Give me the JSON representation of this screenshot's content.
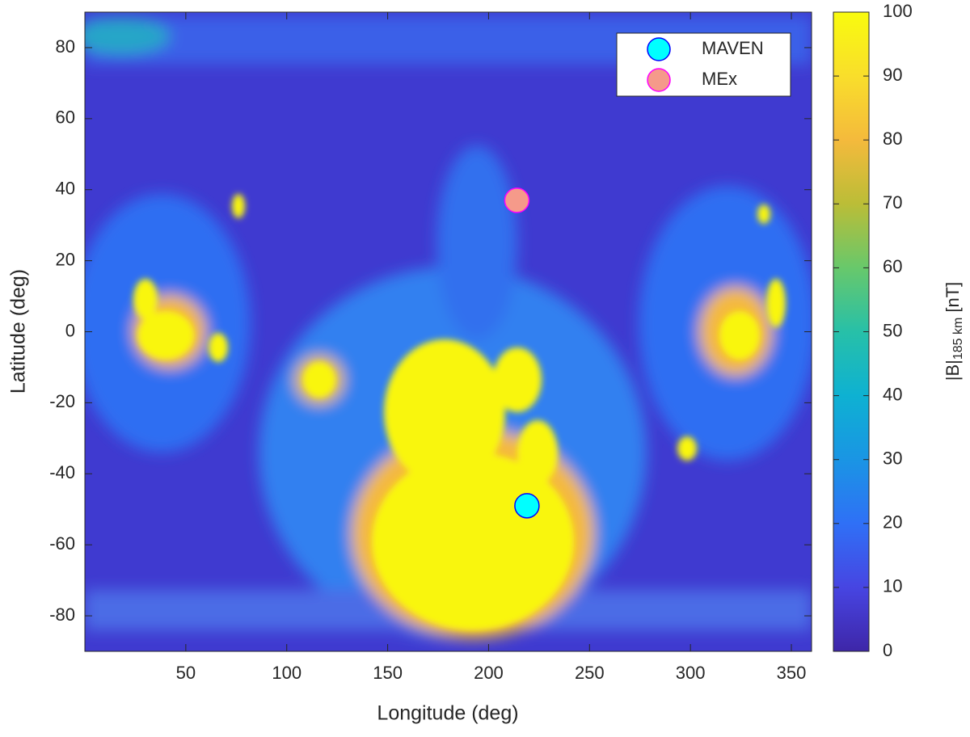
{
  "chart_data": {
    "type": "scatter",
    "xlabel": "Longitude (deg)",
    "ylabel": "Latitude (deg)",
    "xlim": [
      0,
      360
    ],
    "xticks": [
      50,
      100,
      150,
      200,
      250,
      300,
      350
    ],
    "ylim": [
      -90,
      90
    ],
    "yticks": [
      -80,
      -60,
      -40,
      -20,
      0,
      20,
      40,
      60,
      80
    ],
    "legend": "upper right",
    "series": [
      {
        "name": "MAVEN",
        "color": "#00ffff",
        "edgecolor": "#0000ff",
        "x": [
          219
        ],
        "y": [
          -49
        ]
      },
      {
        "name": "MEx",
        "color": "#f59a8a",
        "edgecolor": "#ff00ff",
        "x": [
          214
        ],
        "y": [
          37
        ]
      }
    ],
    "colorbar": {
      "lim": [
        0,
        100
      ],
      "ticks": [
        0,
        10,
        20,
        30,
        40,
        50,
        60,
        70,
        80,
        90,
        100
      ],
      "label": "|B|",
      "label_sub": "185 km",
      "label_unit": "[nT]"
    }
  }
}
